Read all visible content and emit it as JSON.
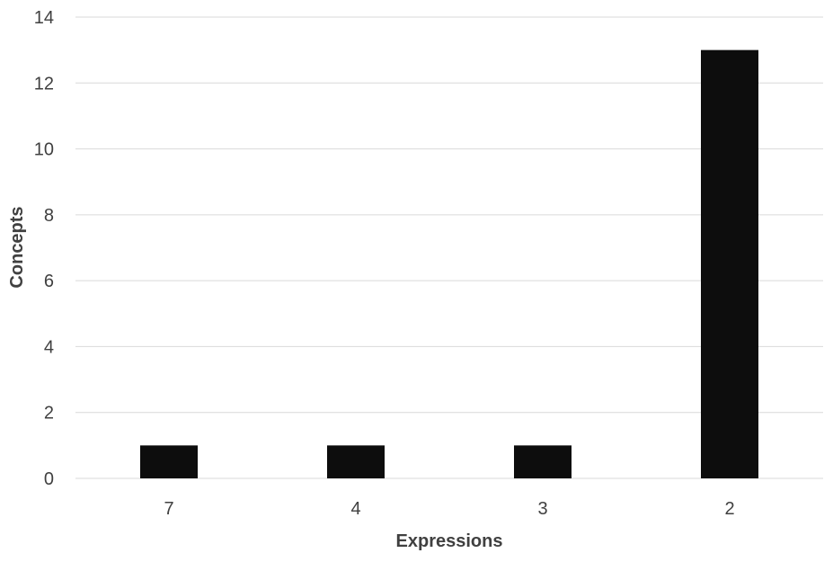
{
  "chart_data": {
    "type": "bar",
    "title": "",
    "xlabel": "Expressions",
    "ylabel": "Concepts",
    "categories": [
      "7",
      "4",
      "3",
      "2"
    ],
    "values": [
      1,
      1,
      1,
      13
    ],
    "ylim": [
      0,
      14
    ],
    "yticks": [
      0,
      2,
      4,
      6,
      8,
      10,
      12,
      14
    ],
    "grid": true,
    "legend": "none",
    "bar_color": "#0d0d0d",
    "grid_color": "#d9d9d9",
    "text_color": "#404040"
  }
}
